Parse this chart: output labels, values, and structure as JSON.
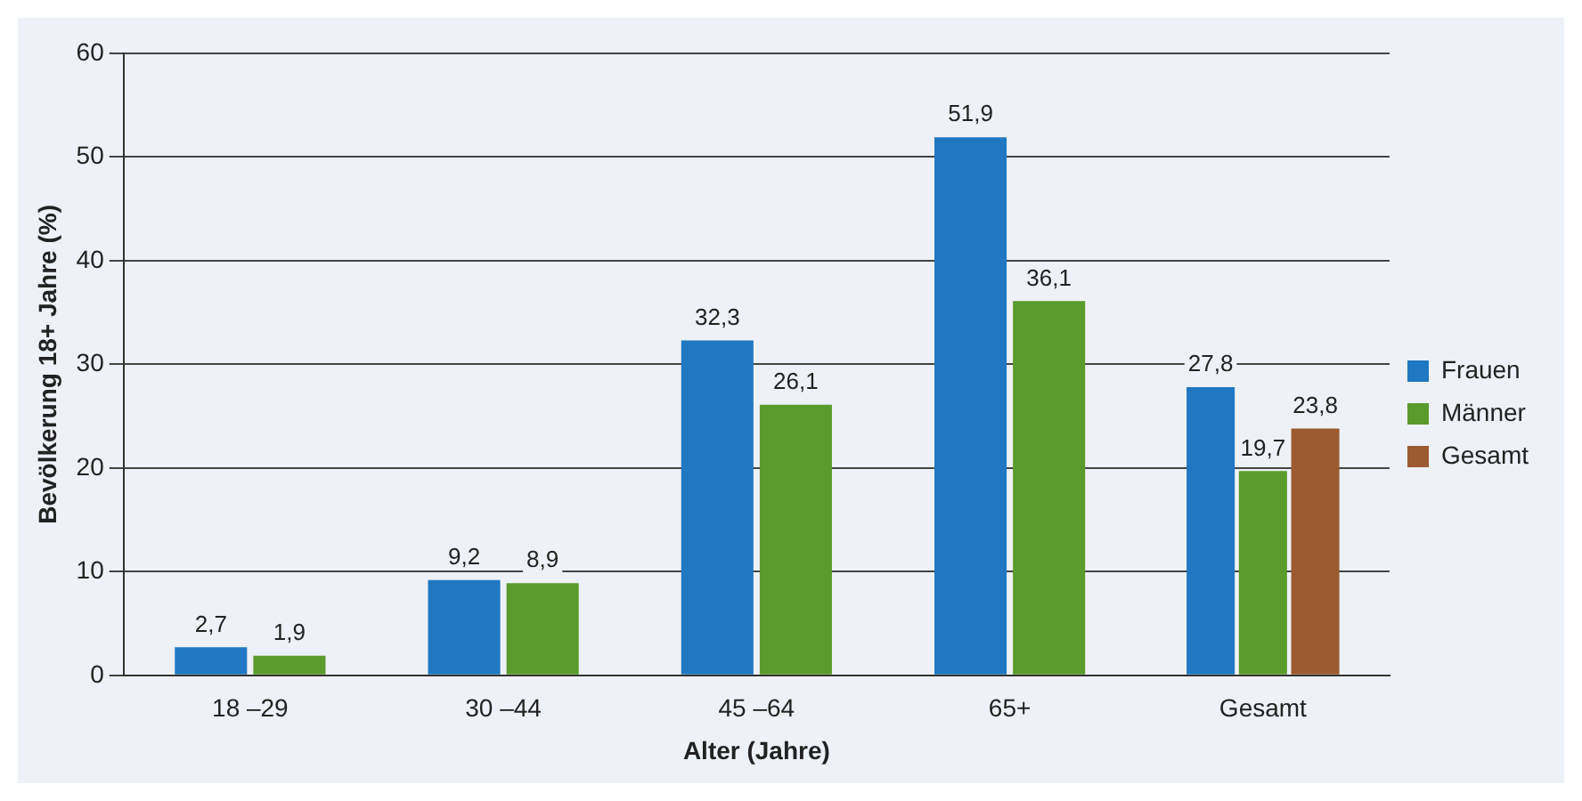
{
  "chart_data": {
    "type": "bar",
    "xlabel": "Alter (Jahre)",
    "ylabel": "Bevölkerung 18+ Jahre (%)",
    "categories": [
      "18 –29",
      "30 –44",
      "45 –64",
      "65+",
      "Gesamt"
    ],
    "series": [
      {
        "name": "Frauen",
        "color": "#1f78c1",
        "values": [
          2.7,
          9.2,
          32.3,
          51.9,
          27.8
        ],
        "value_labels": [
          "2,7",
          "9,2",
          "32,3",
          "51,9",
          "27,8"
        ]
      },
      {
        "name": "Männer",
        "color": "#5b9a2c",
        "values": [
          1.9,
          8.9,
          26.1,
          36.1,
          19.7
        ],
        "value_labels": [
          "1,9",
          "8,9",
          "26,1",
          "36,1",
          "19,7"
        ]
      },
      {
        "name": "Gesamt",
        "color": "#9b5a30",
        "values": [
          null,
          null,
          null,
          null,
          23.8
        ],
        "value_labels": [
          null,
          null,
          null,
          null,
          "23,8"
        ]
      }
    ],
    "ylim": [
      0,
      60
    ],
    "yticks": [
      0,
      10,
      20,
      30,
      40,
      50,
      60
    ],
    "grid": "y",
    "legend": "right"
  }
}
